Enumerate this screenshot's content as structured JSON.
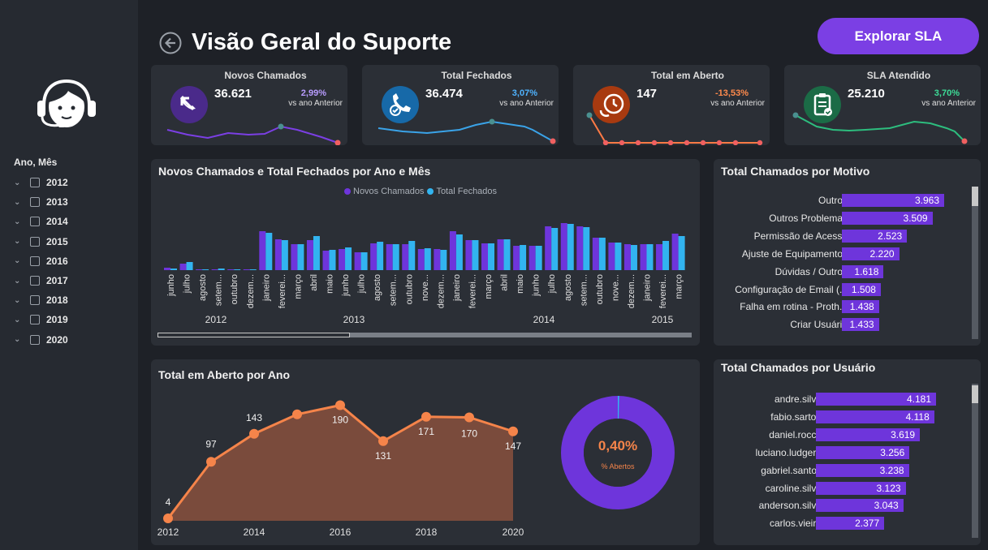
{
  "header": {
    "title": "Visão Geral do Suporte",
    "sla_button": "Explorar SLA"
  },
  "filter": {
    "title": "Ano, Mês",
    "years": [
      "2012",
      "2013",
      "2014",
      "2015",
      "2016",
      "2017",
      "2018",
      "2019",
      "2020"
    ]
  },
  "kpis": [
    {
      "title": "Novos Chamados",
      "value": "36.621",
      "pct": "2,99%",
      "sub": "vs ano Anterior",
      "icon": "phone-incoming-icon",
      "icon_color": "#4a2a8a",
      "pct_color": "#b89cff",
      "line_color": "#7b3fe4"
    },
    {
      "title": "Total Fechados",
      "value": "36.474",
      "pct": "3,07%",
      "sub": "vs ano Anterior",
      "icon": "phone-check-icon",
      "icon_color": "#1769a8",
      "pct_color": "#4fb3ff",
      "line_color": "#3aa3e8"
    },
    {
      "title": "Total em Aberto",
      "value": "147",
      "pct": "-13,53%",
      "sub": "vs ano Anterior",
      "icon": "clock-icon",
      "icon_color": "#a83a10",
      "pct_color": "#ff8a4c",
      "line_color": "#ff7a45"
    },
    {
      "title": "SLA Atendido",
      "value": "25.210",
      "pct": "3,70%",
      "sub": "vs ano Anterior",
      "icon": "clipboard-check-icon",
      "icon_color": "#1b6b46",
      "pct_color": "#3ddc97",
      "line_color": "#2dbd7e"
    }
  ],
  "bar_chart": {
    "title": "Novos Chamados e Total Fechados por Ano e Mês",
    "legend": [
      "Novos Chamados",
      "Total Fechados"
    ],
    "years": [
      {
        "label": "2012"
      },
      {
        "label": "2013"
      },
      {
        "label": "2014"
      },
      {
        "label": "2015"
      }
    ]
  },
  "chart_data": [
    {
      "type": "bar",
      "title": "Novos Chamados e Total Fechados por Ano e Mês",
      "categories": [
        "junho",
        "julho",
        "agosto",
        "setem...",
        "outubro",
        "dezem...",
        "janeiro",
        "feverei...",
        "março",
        "abril",
        "maio",
        "junho",
        "julho",
        "agosto",
        "setem...",
        "outubro",
        "nove...",
        "dezem...",
        "janeiro",
        "feverei...",
        "março",
        "abril",
        "maio",
        "junho",
        "julho",
        "agosto",
        "setem...",
        "outubro",
        "nove...",
        "dezem...",
        "janeiro",
        "feverei...",
        "março"
      ],
      "series": [
        {
          "name": "Novos Chamados",
          "values": [
            3,
            8,
            1,
            1,
            1,
            1,
            48,
            38,
            32,
            37,
            24,
            26,
            22,
            33,
            32,
            32,
            26,
            26,
            48,
            37,
            33,
            38,
            30,
            30,
            54,
            58,
            54,
            40,
            34,
            32,
            32,
            32,
            45
          ]
        },
        {
          "name": "Total Fechados",
          "values": [
            2,
            10,
            1,
            2,
            1,
            1,
            46,
            37,
            32,
            42,
            25,
            28,
            22,
            35,
            32,
            36,
            27,
            25,
            44,
            37,
            33,
            38,
            31,
            30,
            52,
            57,
            53,
            40,
            34,
            31,
            32,
            36,
            42
          ]
        }
      ],
      "xlabel": "",
      "ylabel": ""
    },
    {
      "type": "bar",
      "title": "Total Chamados por Motivo",
      "categories": [
        "Outros",
        "Outros Problemas",
        "Permissão de Acesso",
        "Ajuste de Equipamentos",
        "Dúvidas / Outros",
        "Configuração de Email (...",
        "Falha em rotina - Proth...",
        "Criar Usuário"
      ],
      "values": [
        3963,
        3509,
        2523,
        2220,
        1618,
        1508,
        1438,
        1433
      ],
      "labels": [
        "3.963",
        "3.509",
        "2.523",
        "2.220",
        "1.618",
        "1.508",
        "1.438",
        "1.433"
      ]
    },
    {
      "type": "bar",
      "title": "Total Chamados por Usuário",
      "categories": [
        "andre.silva",
        "fabio.sartori",
        "daniel.rocca",
        "luciano.ludgero",
        "gabriel.santos",
        "caroline.silva",
        "anderson.silva",
        "carlos.vieira"
      ],
      "values": [
        4181,
        4118,
        3619,
        3256,
        3238,
        3123,
        3043,
        2377
      ],
      "labels": [
        "4.181",
        "4.118",
        "3.619",
        "3.256",
        "3.238",
        "3.123",
        "3.043",
        "2.377"
      ]
    },
    {
      "type": "area",
      "title": "Total em Aberto por Ano",
      "x": [
        "2012",
        "2013",
        "2014",
        "2015",
        "2016",
        "2017",
        "2018",
        "2019",
        "2020"
      ],
      "values": [
        4,
        97,
        143,
        175,
        190,
        131,
        171,
        170,
        147
      ],
      "labels": [
        "4",
        "97",
        "143",
        "",
        "190",
        "131",
        "171",
        "170",
        "147"
      ],
      "xticks": [
        "2012",
        "2014",
        "2016",
        "2018",
        "2020"
      ],
      "ylim": [
        0,
        200
      ]
    },
    {
      "type": "pie",
      "title": "",
      "center_value": "0,40%",
      "center_label": "% Abertos",
      "values": [
        0.4,
        99.6
      ]
    }
  ],
  "colors": {
    "purple": "#6e35db",
    "blue": "#32b4f0",
    "orange": "#f5844a",
    "area_fill": "#7a4b3c"
  }
}
